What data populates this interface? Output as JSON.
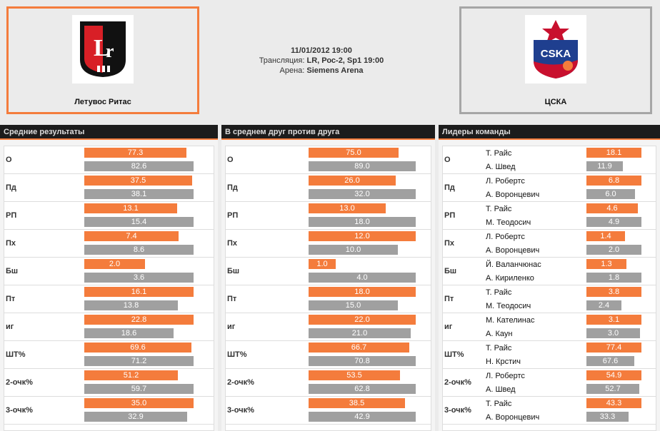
{
  "home_team": {
    "name": "Летувос Ритас",
    "logo_text": "Lr"
  },
  "away_team": {
    "name": "ЦСКА",
    "logo_text": "CSKA"
  },
  "match": {
    "date": "11/01/2012 19:00",
    "broadcast_label": "Трансляция:",
    "broadcast_value": "LR, Рос-2, Sp1 19:00",
    "arena_label": "Арена:",
    "arena_value": "Siemens Arena"
  },
  "colors": {
    "home": "#f47c3c",
    "away": "#a0a0a0",
    "header": "#1c1c1c"
  },
  "panels": {
    "average": {
      "title": "Средние результаты",
      "rows": [
        {
          "label": "О",
          "home": "77.3",
          "away": "82.6"
        },
        {
          "label": "Пд",
          "home": "37.5",
          "away": "38.1"
        },
        {
          "label": "РП",
          "home": "13.1",
          "away": "15.4"
        },
        {
          "label": "Пх",
          "home": "7.4",
          "away": "8.6"
        },
        {
          "label": "Бш",
          "home": "2.0",
          "away": "3.6"
        },
        {
          "label": "Пт",
          "home": "16.1",
          "away": "13.8"
        },
        {
          "label": "иг",
          "home": "22.8",
          "away": "18.6"
        },
        {
          "label": "ШТ%",
          "home": "69.6",
          "away": "71.2"
        },
        {
          "label": "2-очк%",
          "home": "51.2",
          "away": "59.7"
        },
        {
          "label": "3-очк%",
          "home": "35.0",
          "away": "32.9"
        }
      ]
    },
    "head_to_head": {
      "title": "В среднем друг против друга",
      "rows": [
        {
          "label": "О",
          "home": "75.0",
          "away": "89.0"
        },
        {
          "label": "Пд",
          "home": "26.0",
          "away": "32.0"
        },
        {
          "label": "РП",
          "home": "13.0",
          "away": "18.0"
        },
        {
          "label": "Пх",
          "home": "12.0",
          "away": "10.0"
        },
        {
          "label": "Бш",
          "home": "1.0",
          "away": "4.0"
        },
        {
          "label": "Пт",
          "home": "18.0",
          "away": "15.0"
        },
        {
          "label": "иг",
          "home": "22.0",
          "away": "21.0"
        },
        {
          "label": "ШТ%",
          "home": "66.7",
          "away": "70.8"
        },
        {
          "label": "2-очк%",
          "home": "53.5",
          "away": "62.8"
        },
        {
          "label": "3-очк%",
          "home": "38.5",
          "away": "42.9"
        }
      ]
    },
    "leaders": {
      "title": "Лидеры команды",
      "rows": [
        {
          "label": "О",
          "home_name": "Т. Райс",
          "home": "18.1",
          "away_name": "А. Швед",
          "away": "11.9"
        },
        {
          "label": "Пд",
          "home_name": "Л. Робертс",
          "home": "6.8",
          "away_name": "А. Воронцевич",
          "away": "6.0"
        },
        {
          "label": "РП",
          "home_name": "Т. Райс",
          "home": "4.6",
          "away_name": "М. Теодосич",
          "away": "4.9"
        },
        {
          "label": "Пх",
          "home_name": "Л. Робертс",
          "home": "1.4",
          "away_name": "А. Воронцевич",
          "away": "2.0"
        },
        {
          "label": "Бш",
          "home_name": "Й. Валанчюнас",
          "home": "1.3",
          "away_name": "А. Кириленко",
          "away": "1.8"
        },
        {
          "label": "Пт",
          "home_name": "Т. Райс",
          "home": "3.8",
          "away_name": "М. Теодосич",
          "away": "2.4"
        },
        {
          "label": "иг",
          "home_name": "М. Кателинас",
          "home": "3.1",
          "away_name": "А. Каун",
          "away": "3.0"
        },
        {
          "label": "ШТ%",
          "home_name": "Т. Райс",
          "home": "77.4",
          "away_name": "Н. Крстич",
          "away": "67.6"
        },
        {
          "label": "2-очк%",
          "home_name": "Л. Робертс",
          "home": "54.9",
          "away_name": "А. Швед",
          "away": "52.7"
        },
        {
          "label": "3-очк%",
          "home_name": "Т. Райс",
          "home": "43.3",
          "away_name": "А. Воронцевич",
          "away": "33.3"
        }
      ]
    }
  }
}
